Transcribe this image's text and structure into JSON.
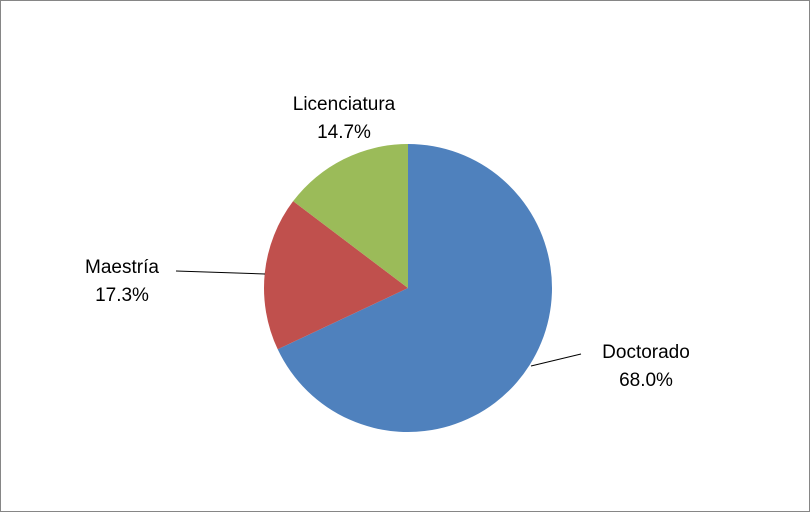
{
  "chart_data": {
    "type": "pie",
    "categories": [
      "Doctorado",
      "Maestría",
      "Licenciatura"
    ],
    "values": [
      68.0,
      17.3,
      14.7
    ],
    "value_labels": [
      "68.0%",
      "17.3%",
      "14.7%"
    ],
    "colors": [
      "#4f81bd",
      "#c0504d",
      "#9bbb59"
    ]
  }
}
